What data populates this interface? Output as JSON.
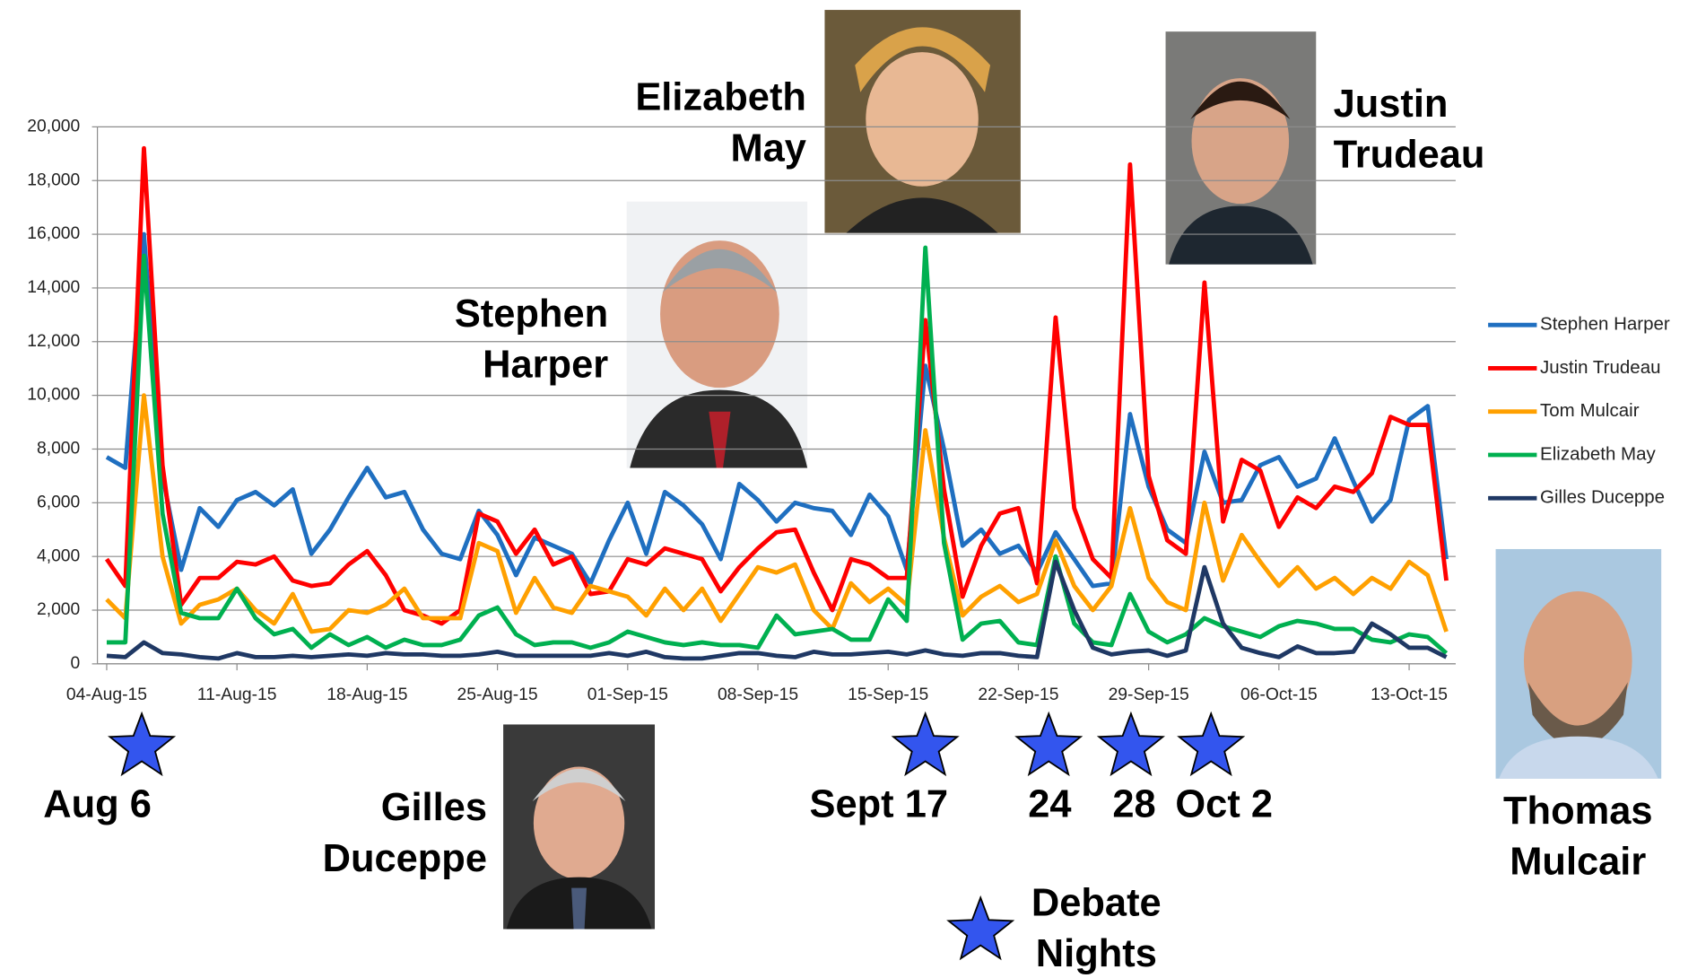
{
  "chart_data": {
    "type": "line",
    "categories": [
      "04-Aug-15",
      null,
      null,
      null,
      null,
      null,
      null,
      "11-Aug-15",
      null,
      null,
      null,
      null,
      null,
      null,
      "18-Aug-15",
      null,
      null,
      null,
      null,
      null,
      null,
      "25-Aug-15",
      null,
      null,
      null,
      null,
      null,
      null,
      "01-Sep-15",
      null,
      null,
      null,
      null,
      null,
      null,
      "08-Sep-15",
      null,
      null,
      null,
      null,
      null,
      null,
      "15-Sep-15",
      null,
      null,
      null,
      null,
      null,
      null,
      "22-Sep-15",
      null,
      null,
      null,
      null,
      null,
      null,
      "29-Sep-15",
      null,
      null,
      null,
      null,
      null,
      null,
      "06-Oct-15",
      null,
      null,
      null,
      null,
      null,
      null,
      "13-Oct-15",
      null,
      null
    ],
    "series": [
      {
        "name": "Stephen Harper",
        "color": "#1f6fc0",
        "values": [
          7700,
          7300,
          16000,
          7000,
          3500,
          5800,
          5100,
          6100,
          6400,
          5900,
          6500,
          4100,
          5000,
          6200,
          7300,
          6200,
          6400,
          5000,
          4100,
          3900,
          5700,
          4800,
          3300,
          4700,
          4400,
          4100,
          3000,
          4600,
          6000,
          4100,
          6400,
          5900,
          5200,
          3900,
          6700,
          6100,
          5300,
          6000,
          5800,
          5700,
          4800,
          6300,
          5500,
          3500,
          11100,
          8000,
          4400,
          5000,
          4100,
          4400,
          3400,
          4900,
          3900,
          2900,
          3000,
          9300,
          6600,
          5000,
          4500,
          7900,
          6000,
          6100,
          7400,
          7700,
          6600,
          6900,
          8400,
          6800,
          5300,
          6100,
          9100,
          9600,
          3900
        ]
      },
      {
        "name": "Justin Trudeau",
        "color": "#ff0000",
        "values": [
          3900,
          2900,
          19200,
          7400,
          2200,
          3200,
          3200,
          3800,
          3700,
          4000,
          3100,
          2900,
          3000,
          3700,
          4200,
          3300,
          2000,
          1800,
          1500,
          2000,
          5600,
          5300,
          4100,
          5000,
          3700,
          4000,
          2600,
          2700,
          3900,
          3700,
          4300,
          4100,
          3900,
          2700,
          3600,
          4300,
          4900,
          5000,
          3400,
          2000,
          3900,
          3700,
          3200,
          3200,
          12800,
          6500,
          2500,
          4400,
          5600,
          5800,
          3000,
          12900,
          5800,
          3900,
          3200,
          18600,
          7000,
          4600,
          4100,
          14200,
          5300,
          7600,
          7200,
          5100,
          6200,
          5800,
          6600,
          6400,
          7100,
          9200,
          8900,
          8900,
          3100
        ]
      },
      {
        "name": "Tom Mulcair",
        "color": "#ffa000",
        "values": [
          2400,
          1700,
          10000,
          4000,
          1500,
          2200,
          2400,
          2800,
          2000,
          1500,
          2600,
          1200,
          1300,
          2000,
          1900,
          2200,
          2800,
          1700,
          1700,
          1700,
          4500,
          4200,
          1900,
          3200,
          2100,
          1900,
          2900,
          2700,
          2500,
          1800,
          2800,
          2000,
          2800,
          1600,
          2600,
          3600,
          3400,
          3700,
          2000,
          1300,
          3000,
          2300,
          2800,
          2200,
          8700,
          4700,
          1800,
          2500,
          2900,
          2300,
          2600,
          4600,
          2900,
          2000,
          2900,
          5800,
          3200,
          2300,
          2000,
          6000,
          3100,
          4800,
          3800,
          2900,
          3600,
          2800,
          3200,
          2600,
          3200,
          2800,
          3800,
          3300,
          1200
        ]
      },
      {
        "name": "Elizabeth May",
        "color": "#00b050",
        "values": [
          800,
          800,
          15200,
          5600,
          1900,
          1700,
          1700,
          2800,
          1700,
          1100,
          1300,
          600,
          1100,
          700,
          1000,
          600,
          900,
          700,
          700,
          900,
          1800,
          2100,
          1100,
          700,
          800,
          800,
          600,
          800,
          1200,
          1000,
          800,
          700,
          800,
          700,
          700,
          600,
          1800,
          1100,
          1200,
          1300,
          900,
          900,
          2400,
          1600,
          15500,
          4500,
          900,
          1500,
          1600,
          800,
          700,
          4000,
          1500,
          800,
          700,
          2600,
          1200,
          800,
          1100,
          1700,
          1400,
          1200,
          1000,
          1400,
          1600,
          1500,
          1300,
          1300,
          900,
          800,
          1100,
          1000,
          400
        ]
      },
      {
        "name": "Gilles Duceppe",
        "color": "#1f3864",
        "values": [
          300,
          250,
          800,
          400,
          350,
          250,
          200,
          400,
          250,
          250,
          300,
          250,
          300,
          350,
          300,
          400,
          350,
          350,
          300,
          300,
          350,
          450,
          300,
          300,
          300,
          300,
          300,
          400,
          300,
          450,
          250,
          200,
          200,
          300,
          400,
          400,
          300,
          250,
          450,
          350,
          350,
          400,
          450,
          350,
          500,
          350,
          300,
          400,
          400,
          300,
          250,
          3800,
          2000,
          600,
          350,
          450,
          500,
          300,
          500,
          3600,
          1500,
          600,
          400,
          250,
          650,
          400,
          400,
          450,
          1500,
          1100,
          600,
          600,
          250
        ]
      }
    ],
    "ylim": [
      0,
      20000
    ],
    "yticks": [
      0,
      {
        "value": 2000,
        "label": "2,000"
      },
      {
        "value": 4000,
        "label": "4,000"
      },
      {
        "value": 6000,
        "label": "6,000"
      },
      {
        "value": 8000,
        "label": "8,000"
      },
      {
        "value": 10000,
        "label": "10,000"
      },
      {
        "value": 12000,
        "label": "12,000"
      },
      {
        "value": 14000,
        "label": "14,000"
      },
      {
        "value": 16000,
        "label": "16,000"
      },
      {
        "value": 18000,
        "label": "18,000"
      },
      {
        "value": 20000,
        "label": "20,000"
      }
    ],
    "grid": true,
    "legend": "right",
    "annotations": {
      "candidates": [
        {
          "lines": [
            "Elizabeth",
            "May"
          ]
        },
        {
          "lines": [
            "Stephen",
            "Harper"
          ]
        },
        {
          "lines": [
            "Justin",
            "Trudeau"
          ]
        },
        {
          "lines": [
            "Gilles",
            "Duceppe"
          ]
        },
        {
          "lines": [
            "Thomas",
            "Mulcair"
          ]
        }
      ],
      "debates": [
        "Aug 6",
        "Sept 17",
        "24",
        "28",
        "Oct 2"
      ],
      "debate_legend": [
        "Debate",
        "Nights"
      ]
    }
  }
}
